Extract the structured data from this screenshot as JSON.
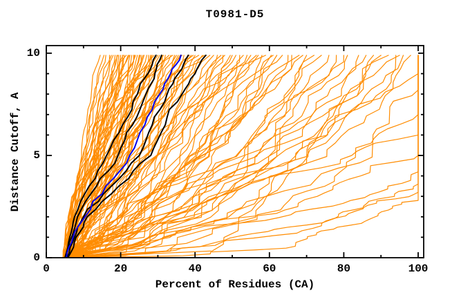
{
  "chart_data": {
    "type": "line",
    "title": "T0981-D5",
    "xlabel": "Percent of Residues (CA)",
    "ylabel": "Distance Cutoff, A",
    "xlim": [
      0,
      101.5
    ],
    "ylim": [
      0,
      10.37
    ],
    "x_major_ticks": [
      0,
      20,
      40,
      60,
      80,
      100
    ],
    "x_minor_ticks": [
      10,
      30,
      50,
      70,
      90
    ],
    "y_major_ticks": [
      0,
      5,
      10
    ],
    "y_minor_ticks": [
      1,
      2,
      3,
      4,
      6,
      7,
      8,
      9
    ],
    "grid": "off",
    "legend": "none",
    "colors": {
      "model_curves": "#ff8c00",
      "reference_curves": "#000000",
      "highlight_curve": "#0000ee",
      "axis": "#000000",
      "background": "#ffffff"
    },
    "series": {
      "black_curves": [
        {
          "name": "black-1",
          "points": [
            [
              0,
              5.0
            ],
            [
              1,
              6.3
            ],
            [
              2,
              7.6
            ],
            [
              3.5,
              11.5
            ],
            [
              5,
              16.2
            ],
            [
              6.5,
              20.5
            ],
            [
              8,
              24.5
            ],
            [
              9,
              27.3
            ],
            [
              9.9,
              29.5
            ]
          ]
        },
        {
          "name": "black-2",
          "points": [
            [
              0,
              5.2
            ],
            [
              1,
              6.8
            ],
            [
              2,
              8.4
            ],
            [
              3.5,
              13.5
            ],
            [
              5,
              19.3
            ],
            [
              6.5,
              23.2
            ],
            [
              8,
              26.8
            ],
            [
              9,
              29.2
            ],
            [
              9.9,
              31.0
            ]
          ]
        },
        {
          "name": "black-3",
          "points": [
            [
              0,
              5.6
            ],
            [
              1,
              7.6
            ],
            [
              2,
              10.0
            ],
            [
              3.5,
              17.5
            ],
            [
              5,
              25.0
            ],
            [
              6.5,
              28.5
            ],
            [
              8,
              32.5
            ],
            [
              9,
              35.5
            ],
            [
              9.9,
              38.2
            ]
          ]
        },
        {
          "name": "black-4",
          "points": [
            [
              0,
              5.8
            ],
            [
              1,
              8.0
            ],
            [
              2,
              11.0
            ],
            [
              3.5,
              19.5
            ],
            [
              5,
              28.1
            ],
            [
              6.5,
              32.0
            ],
            [
              8,
              36.5
            ],
            [
              9,
              40.0
            ],
            [
              9.9,
              42.9
            ]
          ]
        }
      ],
      "blue_curve": {
        "name": "blue-highlight",
        "points": [
          [
            0,
            5.4
          ],
          [
            1,
            7.2
          ],
          [
            2,
            10.4
          ],
          [
            3.5,
            16.0
          ],
          [
            5,
            22.4
          ],
          [
            6.5,
            26.5
          ],
          [
            8,
            30.5
          ],
          [
            9,
            33.4
          ],
          [
            9.9,
            36.2
          ]
        ]
      },
      "orange_curve_fields": [
        "start_pct",
        "end_pct",
        "end_cutoff",
        "gamma"
      ],
      "orange_curves": [
        [
          5.2,
          14.5,
          9.9,
          1.25
        ],
        [
          4.6,
          15.5,
          9.9,
          1.05
        ],
        [
          6.0,
          16.0,
          9.9,
          1.4
        ],
        [
          5.5,
          17.0,
          9.9,
          0.95
        ],
        [
          4.9,
          17.5,
          9.9,
          1.2
        ],
        [
          6.4,
          18.0,
          9.9,
          1.1
        ],
        [
          5.1,
          18.5,
          9.9,
          1.5
        ],
        [
          5.8,
          19.0,
          9.9,
          0.85
        ],
        [
          4.4,
          19.2,
          9.9,
          1.15
        ],
        [
          6.7,
          19.5,
          9.9,
          1.0
        ],
        [
          5.3,
          20.0,
          9.9,
          1.3
        ],
        [
          4.8,
          20.5,
          9.9,
          0.9
        ],
        [
          6.2,
          20.7,
          9.9,
          1.2
        ],
        [
          5.6,
          21.0,
          9.9,
          1.05
        ],
        [
          5.0,
          21.5,
          9.9,
          1.45
        ],
        [
          6.9,
          22.0,
          9.9,
          0.8
        ],
        [
          4.5,
          22.3,
          9.9,
          1.1
        ],
        [
          5.9,
          22.5,
          9.9,
          1.25
        ],
        [
          5.4,
          23.0,
          9.9,
          0.95
        ],
        [
          6.1,
          23.5,
          9.9,
          1.35
        ],
        [
          4.7,
          23.7,
          9.9,
          1.0
        ],
        [
          5.7,
          24.0,
          9.9,
          1.15
        ],
        [
          6.3,
          24.5,
          9.9,
          0.75
        ],
        [
          5.2,
          25.0,
          9.9,
          1.05
        ],
        [
          4.9,
          25.2,
          9.9,
          0.9
        ],
        [
          6.6,
          25.5,
          9.9,
          1.2
        ],
        [
          5.5,
          26.0,
          9.9,
          0.65
        ],
        [
          5.0,
          26.3,
          9.9,
          1.0
        ],
        [
          6.0,
          27.0,
          9.9,
          0.85
        ],
        [
          4.6,
          27.5,
          9.9,
          1.3
        ],
        [
          5.8,
          28.0,
          9.9,
          0.7
        ],
        [
          6.4,
          28.3,
          9.9,
          1.1
        ],
        [
          5.3,
          28.5,
          9.9,
          0.95
        ],
        [
          4.8,
          29.0,
          9.9,
          1.8
        ],
        [
          6.1,
          29.5,
          9.9,
          0.8
        ],
        [
          5.6,
          30.0,
          9.9,
          1.05
        ],
        [
          5.1,
          30.5,
          9.9,
          0.6
        ],
        [
          6.8,
          31.0,
          9.9,
          1.2
        ],
        [
          4.5,
          31.2,
          9.9,
          0.9
        ],
        [
          5.9,
          31.5,
          9.9,
          1.0
        ],
        [
          5.4,
          32.0,
          9.9,
          0.75
        ],
        [
          6.2,
          33.0,
          9.9,
          1.15
        ],
        [
          4.9,
          33.5,
          9.9,
          0.85
        ],
        [
          5.7,
          34.0,
          9.9,
          1.9
        ],
        [
          6.5,
          34.5,
          9.9,
          0.95
        ],
        [
          5.2,
          35.0,
          9.9,
          0.7
        ],
        [
          4.7,
          35.5,
          9.9,
          1.1
        ],
        [
          6.0,
          36.0,
          9.9,
          0.6
        ],
        [
          5.5,
          36.5,
          9.9,
          1.0
        ],
        [
          5.0,
          37.0,
          9.9,
          0.8
        ],
        [
          6.3,
          38.0,
          9.9,
          1.25
        ],
        [
          4.6,
          38.5,
          9.9,
          0.9
        ],
        [
          5.8,
          39.0,
          9.9,
          0.65
        ],
        [
          6.6,
          39.5,
          9.9,
          1.05
        ],
        [
          5.3,
          40.0,
          9.9,
          0.75
        ],
        [
          4.8,
          41.0,
          9.9,
          1.15
        ],
        [
          6.1,
          42.0,
          9.9,
          0.55
        ],
        [
          5.6,
          42.5,
          9.9,
          0.95
        ],
        [
          5.1,
          43.0,
          9.9,
          1.7
        ],
        [
          6.9,
          44.0,
          9.9,
          0.8
        ],
        [
          4.4,
          45.0,
          9.9,
          0.6
        ],
        [
          5.9,
          46.0,
          9.9,
          0.9
        ],
        [
          5.4,
          47.0,
          9.9,
          0.6
        ],
        [
          6.2,
          47.5,
          9.9,
          1.0
        ],
        [
          4.9,
          48.0,
          9.9,
          0.7
        ],
        [
          5.7,
          49.5,
          9.9,
          0.55
        ],
        [
          6.5,
          50.0,
          9.9,
          0.85
        ],
        [
          5.2,
          51.0,
          9.9,
          0.65
        ],
        [
          4.7,
          52.0,
          9.9,
          1.1
        ],
        [
          6.0,
          53.0,
          9.9,
          0.5
        ],
        [
          5.5,
          54.0,
          9.9,
          0.8
        ],
        [
          5.0,
          55.0,
          9.9,
          0.6
        ],
        [
          6.3,
          56.5,
          9.9,
          0.95
        ],
        [
          4.6,
          57.0,
          9.9,
          0.7
        ],
        [
          5.8,
          58.0,
          9.9,
          0.5
        ],
        [
          6.6,
          59.0,
          9.9,
          1.5
        ],
        [
          5.3,
          60.5,
          9.9,
          0.62
        ],
        [
          4.8,
          61.0,
          9.9,
          0.8
        ],
        [
          6.1,
          62.0,
          9.9,
          0.55
        ],
        [
          5.6,
          63.5,
          9.9,
          0.72
        ],
        [
          5.1,
          65.0,
          9.9,
          0.6
        ],
        [
          6.4,
          66.0,
          9.9,
          0.5
        ],
        [
          4.5,
          68.0,
          9.9,
          0.65
        ],
        [
          5.9,
          69.0,
          9.9,
          0.55
        ],
        [
          5.4,
          70.0,
          9.9,
          0.48
        ],
        [
          6.2,
          72.0,
          9.9,
          0.7
        ],
        [
          4.9,
          74.0,
          9.9,
          0.52
        ],
        [
          5.7,
          76.0,
          9.9,
          0.6
        ],
        [
          6.5,
          78.0,
          9.9,
          0.47
        ],
        [
          5.2,
          80.0,
          9.9,
          0.68
        ],
        [
          4.7,
          81.0,
          9.9,
          0.55
        ],
        [
          6.0,
          84.0,
          9.9,
          0.5
        ],
        [
          5.5,
          86.0,
          9.9,
          0.62
        ],
        [
          5.0,
          88.0,
          9.9,
          0.46
        ],
        [
          6.3,
          90.0,
          9.9,
          0.58
        ],
        [
          4.6,
          92.0,
          9.9,
          0.5
        ],
        [
          5.8,
          94.0,
          9.9,
          0.65
        ],
        [
          6.6,
          95.0,
          9.9,
          0.48
        ],
        [
          5.3,
          96.0,
          9.9,
          0.55
        ],
        [
          4.8,
          98.0,
          9.9,
          0.5
        ],
        [
          6.1,
          100,
          2.8,
          0.55
        ],
        [
          5.6,
          100,
          3.2,
          0.6
        ],
        [
          5.1,
          100,
          3.6,
          0.5
        ],
        [
          6.9,
          100,
          4.2,
          0.65
        ],
        [
          4.4,
          100,
          5.0,
          0.55
        ],
        [
          5.9,
          100,
          6.0,
          0.6
        ],
        [
          5.4,
          100,
          7.0,
          0.5
        ],
        [
          6.2,
          100,
          8.2,
          0.58
        ],
        [
          4.9,
          100,
          9.0,
          0.52
        ]
      ]
    }
  }
}
